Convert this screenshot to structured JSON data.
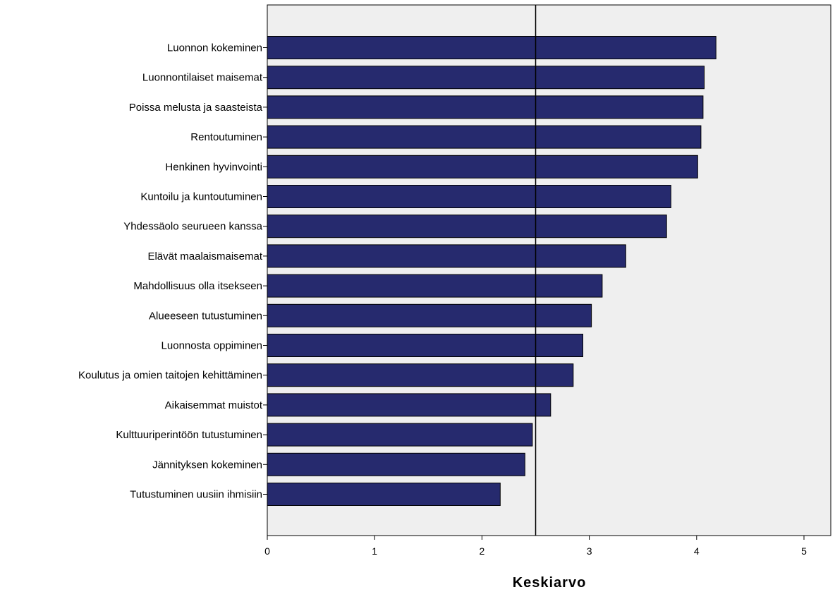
{
  "chart_data": {
    "type": "bar",
    "orientation": "horizontal",
    "xlabel": "Keskiarvo",
    "ylabel": "",
    "title": "",
    "xlim": [
      0,
      5.25
    ],
    "xticks": [
      0,
      1,
      2,
      3,
      4,
      5
    ],
    "reference_line": 2.5,
    "categories": [
      "Luonnon kokeminen",
      "Luonnontilaiset maisemat",
      "Poissa melusta ja saasteista",
      "Rentoutuminen",
      "Henkinen hyvinvointi",
      "Kuntoilu ja kuntoutuminen",
      "Yhdessäolo seurueen kanssa",
      "Elävät maalaismaisemat",
      "Mahdollisuus olla itsekseen",
      "Alueeseen tutustuminen",
      "Luonnosta oppiminen",
      "Koulutus ja omien taitojen kehittäminen",
      "Aikaisemmat muistot",
      "Kulttuuriperintöön tutustuminen",
      "Jännityksen kokeminen",
      "Tutustuminen uusiin ihmisiin"
    ],
    "values": [
      4.18,
      4.07,
      4.06,
      4.04,
      4.01,
      3.76,
      3.72,
      3.34,
      3.12,
      3.02,
      2.94,
      2.85,
      2.64,
      2.47,
      2.4,
      2.17
    ],
    "colors": {
      "bar_fill": "#262a6e",
      "bar_stroke": "#000000",
      "plot_background": "#efefef",
      "reference_line": "#000000"
    },
    "grid": false,
    "legend": "none"
  }
}
